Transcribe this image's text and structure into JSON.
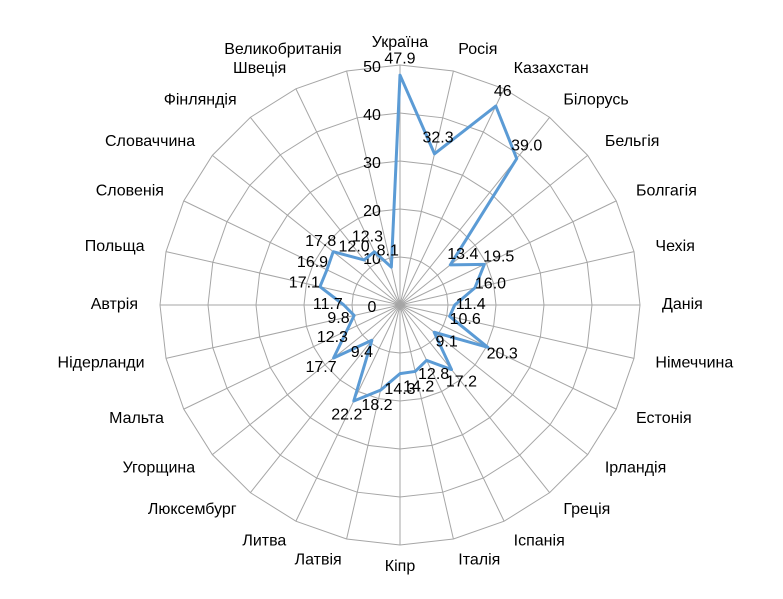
{
  "chart_data": {
    "type": "radar",
    "categories": [
      "Україна",
      "Росія",
      "Казахстан",
      "Білорусь",
      "Бельгія",
      "Болгагія",
      "Чехія",
      "Данія",
      "Німеччина",
      "Естонія",
      "Ірландія",
      "Греція",
      "Іспанія",
      "Італія",
      "Кіпр",
      "Латвія",
      "Литва",
      "Люксембург",
      "Угорщина",
      "Мальта",
      "Нідерланди",
      "Автрія",
      "Польща",
      "Словенія",
      "Словаччина",
      "Фінляндія",
      "Швеція",
      "Великобританія"
    ],
    "values": [
      47.9,
      32.3,
      46,
      39,
      13.4,
      19.5,
      16,
      11.4,
      10.6,
      20.3,
      9.1,
      17.2,
      12.8,
      14.2,
      14.3,
      18.2,
      22.2,
      9.4,
      17.7,
      12.3,
      9.8,
      11.7,
      17.1,
      16.9,
      17.8,
      12,
      12.3,
      8.1
    ],
    "value_labels": [
      "47.9",
      "32.3",
      "46",
      "39.0",
      "13.4",
      "19.5",
      "16.0",
      "11.4",
      "10.6",
      "20.3",
      "9.1",
      "17.2",
      "12.8",
      "14.2",
      "14.3",
      "18.2",
      "22.2",
      "9.4",
      "17.7",
      "12.3",
      "9.8",
      "11.7",
      "17.1",
      "16.9",
      "17.8",
      "12.0",
      "12.3",
      "8.1"
    ],
    "color": "#5b9bd5",
    "rlim": [
      0,
      50
    ],
    "rticks": [
      0,
      10,
      20,
      30,
      40,
      50
    ],
    "grid": true
  }
}
